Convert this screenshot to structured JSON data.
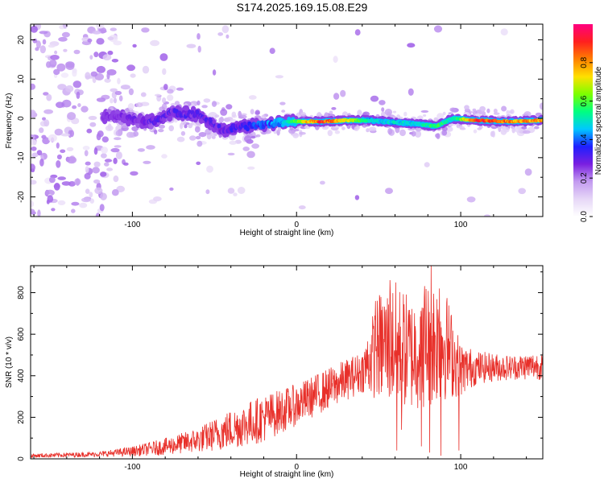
{
  "title": "S174.2025.169.15.08.E29",
  "chart_data": [
    {
      "type": "heatmap",
      "description_label": "spectrogram",
      "xlabel": "Height of straight line (km)",
      "ylabel": "Frequency (Hz)",
      "xlim": [
        -162,
        150
      ],
      "ylim": [
        -25,
        24
      ],
      "xticks": [
        -100,
        0,
        100
      ],
      "yticks": [
        -20,
        -10,
        0,
        10,
        20
      ],
      "colorbar": {
        "label": "Normalized spectral amplitude",
        "range": [
          0.0,
          1.0
        ],
        "ticks": [
          0.0,
          0.2,
          0.4,
          0.6,
          0.8
        ],
        "tick_labels": [
          "0.0",
          "0.2",
          "0.4",
          "0.6",
          "0.8"
        ],
        "colormap": [
          "#ffffff",
          "#e6d7f7",
          "#c39bf0",
          "#7a1fe0",
          "#1f1fff",
          "#00c8ff",
          "#00ff80",
          "#7cff00",
          "#ffe000",
          "#ff8000",
          "#ff1f1f",
          "#ff0080"
        ]
      },
      "ridge": [
        {
          "x": -110,
          "freq": 0.5,
          "amp": 0.25
        },
        {
          "x": -90,
          "freq": -1.0,
          "amp": 0.3
        },
        {
          "x": -75,
          "freq": 1.5,
          "amp": 0.3
        },
        {
          "x": -60,
          "freq": 1.0,
          "amp": 0.3
        },
        {
          "x": -45,
          "freq": -3.0,
          "amp": 0.3
        },
        {
          "x": -30,
          "freq": -2.0,
          "amp": 0.35
        },
        {
          "x": -10,
          "freq": -1.0,
          "amp": 0.45
        },
        {
          "x": 0,
          "freq": -0.8,
          "amp": 0.65
        },
        {
          "x": 15,
          "freq": -0.8,
          "amp": 0.95
        },
        {
          "x": 30,
          "freq": -0.5,
          "amp": 0.75
        },
        {
          "x": 45,
          "freq": -0.5,
          "amp": 0.5
        },
        {
          "x": 60,
          "freq": -1.0,
          "amp": 0.5
        },
        {
          "x": 75,
          "freq": -1.5,
          "amp": 0.5
        },
        {
          "x": 85,
          "freq": -2.0,
          "amp": 0.6
        },
        {
          "x": 95,
          "freq": 0.0,
          "amp": 0.5
        },
        {
          "x": 110,
          "freq": -0.5,
          "amp": 0.95
        },
        {
          "x": 130,
          "freq": -0.8,
          "amp": 0.85
        },
        {
          "x": 150,
          "freq": -0.5,
          "amp": 0.85
        }
      ]
    },
    {
      "type": "line",
      "xlabel": "Height of straight line (km)",
      "ylabel": "SNR (10 * v/v)",
      "xlim": [
        -162,
        150
      ],
      "ylim": [
        0,
        930
      ],
      "xticks": [
        -100,
        0,
        100
      ],
      "yticks": [
        0,
        200,
        400,
        600,
        800
      ],
      "color": "#e8302a",
      "envelope": {
        "x": [
          -162,
          -140,
          -120,
          -100,
          -80,
          -60,
          -40,
          -20,
          0,
          20,
          40,
          50,
          60,
          70,
          80,
          90,
          100,
          110,
          130,
          150
        ],
        "lower": [
          5,
          8,
          10,
          12,
          18,
          30,
          45,
          80,
          160,
          240,
          320,
          280,
          250,
          230,
          240,
          280,
          300,
          360,
          380,
          380
        ],
        "upper": [
          25,
          30,
          35,
          60,
          100,
          150,
          240,
          310,
          360,
          440,
          520,
          800,
          860,
          780,
          900,
          840,
          560,
          520,
          500,
          520
        ]
      },
      "deep_dips": [
        {
          "x": 48,
          "y": 170
        },
        {
          "x": 61,
          "y": 40
        },
        {
          "x": 64,
          "y": 140
        },
        {
          "x": 76,
          "y": 60
        },
        {
          "x": 81,
          "y": 30
        },
        {
          "x": 88,
          "y": 15
        },
        {
          "x": 99,
          "y": 40
        }
      ],
      "peaks": [
        {
          "x": 48,
          "y": 760
        },
        {
          "x": 57,
          "y": 860
        },
        {
          "x": 82,
          "y": 930
        },
        {
          "x": 87,
          "y": 820
        }
      ]
    }
  ]
}
